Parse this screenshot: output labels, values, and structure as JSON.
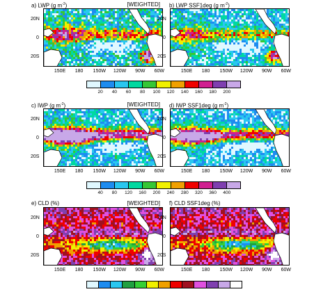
{
  "panels": {
    "a": {
      "title": "a) LWP (g m",
      "sup": "-2",
      "close": ")",
      "tag": "[WEIGHTED]"
    },
    "b": {
      "title": "b) LWP SSF1deg (g m",
      "sup": "-2",
      "close": ")",
      "tag": ""
    },
    "c": {
      "title": "c) IWP (g m",
      "sup": "-2",
      "close": ")",
      "tag": "[WEIGHTED]"
    },
    "d": {
      "title": "d) IWP SSF1deg (g m",
      "sup": "-2",
      "close": ")",
      "tag": ""
    },
    "e": {
      "title": "e) CLD (%)",
      "sup": "",
      "close": "",
      "tag": "[WEIGHTED]"
    },
    "f": {
      "title": "f) CLD SSF1deg (%)",
      "sup": "",
      "close": "",
      "tag": ""
    }
  },
  "lat_labels": [
    "20N",
    "0",
    "20S"
  ],
  "lon_labels": [
    "150E",
    "180",
    "150W",
    "120W",
    "90W",
    "60W"
  ],
  "colorbars": [
    {
      "labels": [
        "20",
        "40",
        "60",
        "80",
        "100",
        "120",
        "140",
        "160",
        "180",
        "200"
      ],
      "colors": [
        "#e0f8ff",
        "#1e8cf0",
        "#29c7f0",
        "#00d9a0",
        "#35c735",
        "#f0f000",
        "#f0a000",
        "#f00000",
        "#d02090",
        "#7f3fb0",
        "#c8a8e8"
      ]
    },
    {
      "labels": [
        "40",
        "80",
        "120",
        "160",
        "200",
        "240",
        "280",
        "320",
        "360",
        "400"
      ],
      "colors": [
        "#e0f8ff",
        "#1e8cf0",
        "#29c7f0",
        "#00d9a0",
        "#35c735",
        "#f0f000",
        "#f0a000",
        "#f00000",
        "#d02090",
        "#7f3fb0",
        "#c8a8e8"
      ]
    },
    {
      "labels": [],
      "colors": [
        "#e0f8ff",
        "#1e8cf0",
        "#29c7f0",
        "#20a040",
        "#35d035",
        "#f0f000",
        "#f0a000",
        "#f00000",
        "#a01020",
        "#e050e0",
        "#8040b0",
        "#c8a8e8",
        "#ffffff"
      ]
    }
  ],
  "colors": {
    "land": "#ffffff",
    "coast": "#000000"
  }
}
